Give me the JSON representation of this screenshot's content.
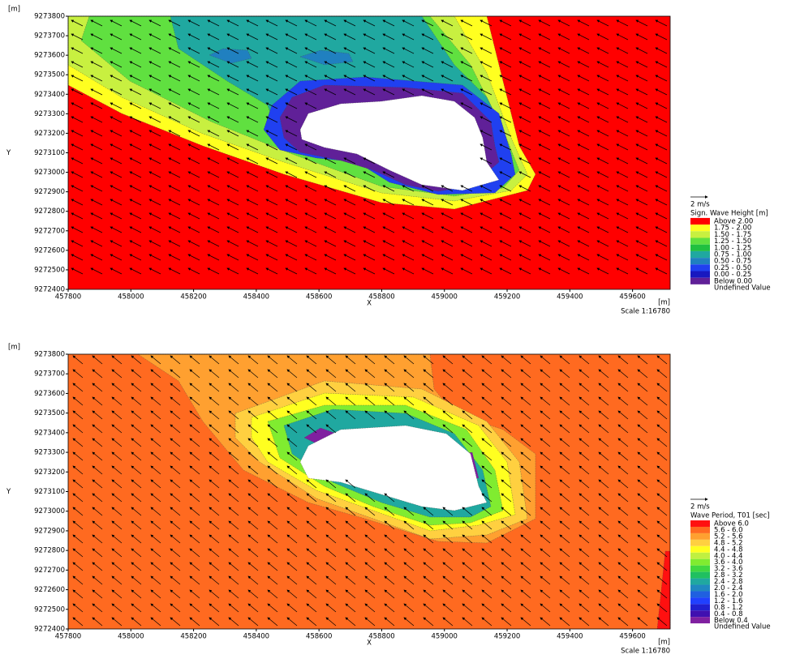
{
  "chart_data": [
    {
      "type": "contour",
      "axis_unit": "[m]",
      "x_unit": "[m]",
      "xlabel": "X",
      "ylabel": "Y",
      "scale": "Scale 1:16780",
      "vector_scale": "2 m/s",
      "xlim": [
        457800,
        459720
      ],
      "ylim": [
        9272400,
        9273800
      ],
      "xticks": [
        457800,
        458000,
        458200,
        458400,
        458600,
        458800,
        459000,
        459200,
        459400,
        459600
      ],
      "yticks": [
        9272400,
        9272500,
        9272600,
        9272700,
        9272800,
        9272900,
        9273000,
        9273100,
        9273200,
        9273300,
        9273400,
        9273500,
        9273600,
        9273700,
        9273800
      ],
      "legend": {
        "title": "Sign. Wave Height [m]",
        "labels": [
          "Above 2.00",
          "1.75 - 2.00",
          "1.50 - 1.75",
          "1.25 - 1.50",
          "1.00 - 1.25",
          "0.75 - 1.00",
          "0.50 - 0.75",
          "0.25 - 0.50",
          "0.00 - 0.25",
          "Below 0.00",
          "Undefined Value"
        ],
        "colors": [
          "#ff0000",
          "#ffff20",
          "#c8f040",
          "#60e040",
          "#20c040",
          "#20a8a0",
          "#2080c0",
          "#2040f0",
          "#1818c0",
          "#602098",
          "#ffffff"
        ]
      }
    },
    {
      "type": "contour",
      "axis_unit": "[m]",
      "x_unit": "[m]",
      "xlabel": "X",
      "ylabel": "Y",
      "scale": "Scale 1:16780",
      "vector_scale": "2 m/s",
      "xlim": [
        457800,
        459720
      ],
      "ylim": [
        9272400,
        9273800
      ],
      "xticks": [
        457800,
        458000,
        458200,
        458400,
        458600,
        458800,
        459000,
        459200,
        459400,
        459600
      ],
      "yticks": [
        9272400,
        9272500,
        9272600,
        9272700,
        9272800,
        9272900,
        9273000,
        9273100,
        9273200,
        9273300,
        9273400,
        9273500,
        9273600,
        9273700,
        9273800
      ],
      "legend": {
        "title": "Wave Period, T01 [sec]",
        "labels": [
          "Above 6.0",
          "5.6 - 6.0",
          "5.2 - 5.6",
          "4.8 - 5.2",
          "4.4 - 4.8",
          "4.0 - 4.4",
          "3.6 - 4.0",
          "3.2 - 3.6",
          "2.8 - 3.2",
          "2.4 - 2.8",
          "2.0 - 2.4",
          "1.6 - 2.0",
          "1.2 - 1.6",
          "0.8 - 1.2",
          "0.4 - 0.8",
          "Below 0.4",
          "Undefined Value"
        ],
        "colors": [
          "#ff1010",
          "#ff6a20",
          "#ffa030",
          "#ffd040",
          "#ffff20",
          "#c0f040",
          "#80ec30",
          "#40d840",
          "#20c060",
          "#20a8a0",
          "#2088c0",
          "#2060e0",
          "#2040ff",
          "#2020d0",
          "#4010b0",
          "#8020a0",
          "#ffffff"
        ]
      }
    }
  ]
}
